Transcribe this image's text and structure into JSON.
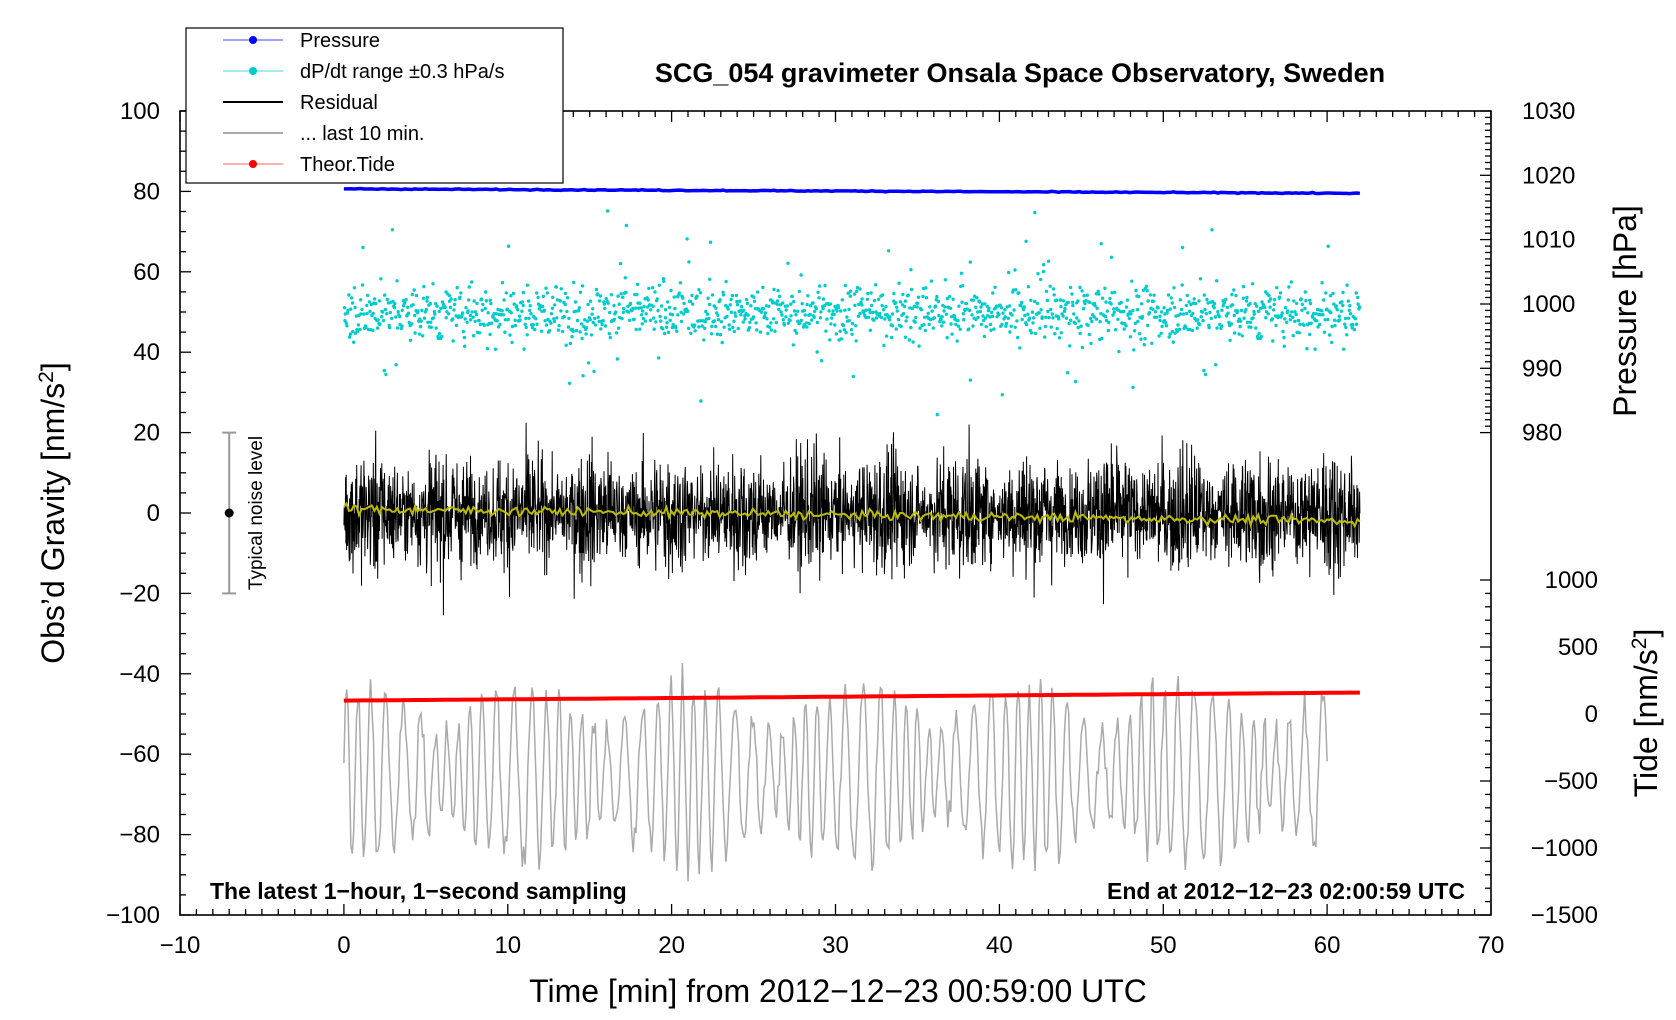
{
  "chart_data": {
    "type": "scatter",
    "title": "SCG_054 gravimeter Onsala Space Observatory, Sweden",
    "xlabel": "Time [min] from 2012−12−23 00:59:00 UTC",
    "ylabel_left": "Obs’d Gravity [nm/s",
    "ylabel_left_sup": "2",
    "ylabel_left_close": "]",
    "ylabel_right_pressure": "Pressure [hPa]",
    "ylabel_right_tide": "Tide [nm/s",
    "ylabel_right_tide_sup": "2",
    "ylabel_right_tide_close": "]",
    "xlim": [
      -10,
      70
    ],
    "ylim": [
      -100,
      100
    ],
    "x_ticks": [
      -10,
      0,
      10,
      20,
      30,
      40,
      50,
      60,
      70
    ],
    "x_tick_labels": [
      "−10",
      "0",
      "10",
      "20",
      "30",
      "40",
      "50",
      "60",
      "70"
    ],
    "y_ticks": [
      -100,
      -80,
      -60,
      -40,
      -20,
      0,
      20,
      40,
      60,
      80,
      100
    ],
    "y_tick_labels": [
      "−100",
      "−80",
      "−60",
      "−40",
      "−20",
      "0",
      "20",
      "40",
      "60",
      "80",
      "100"
    ],
    "pressure_axis": {
      "range": [
        980,
        1030
      ],
      "ticks": [
        980,
        990,
        1000,
        1010,
        1020,
        1030
      ],
      "tick_labels": [
        "980",
        "990",
        "1000",
        "1010",
        "1020",
        "1030"
      ],
      "gravity_at_min": 20,
      "gravity_at_max": 100
    },
    "tide_axis": {
      "range": [
        -1500,
        1000
      ],
      "ticks": [
        -1500,
        -1000,
        -500,
        0,
        500,
        1000
      ],
      "tick_labels": [
        "−1500",
        "−1000",
        "−500",
        "0",
        "500",
        "1000"
      ],
      "gravity_at_min": -100,
      "gravity_at_max": -16.67
    },
    "legend": [
      {
        "label": "Pressure",
        "color": "#0000ff",
        "marker": true
      },
      {
        "label": "dP/dt range ±0.3 hPa/s",
        "color": "#00cccc",
        "marker": true
      },
      {
        "label": "Residual",
        "color": "#000000",
        "marker": false
      },
      {
        "label": "... last 10 min.",
        "color": "#aaaaaa",
        "marker": false
      },
      {
        "label": "Theor.Tide",
        "color": "#ff0000",
        "marker": true
      }
    ],
    "series": [
      {
        "name": "Pressure",
        "unit": "hPa",
        "x_range": [
          0,
          62
        ],
        "start": 1017.9,
        "end": 1017.2,
        "color": "#0000ff"
      },
      {
        "name": "dP/dt range ±0.3 hPa/s",
        "center_gravity": 50,
        "spread": 10,
        "x_range": [
          0,
          62
        ],
        "color": "#00cccc"
      },
      {
        "name": "Residual",
        "center_gravity": 0,
        "amplitude": 25,
        "x_range": [
          0,
          62
        ],
        "color": "#000000"
      },
      {
        "name": "Residual trend",
        "x_range": [
          0,
          62
        ],
        "start": 1,
        "end": -2,
        "color": "#bbbb00"
      },
      {
        "name": "... last 10 min.",
        "center_gravity": -65,
        "amplitude": 22,
        "x_range": [
          0,
          60
        ],
        "color": "#aaaaaa"
      },
      {
        "name": "Theor.Tide",
        "unit": "nm/s2",
        "x_range": [
          0,
          62
        ],
        "start": 100,
        "end": 160,
        "color": "#ff0000"
      }
    ],
    "noise_bar": {
      "x": -7,
      "center": 0,
      "half_range": 20,
      "label": "Typical noise level",
      "color": "#999999"
    },
    "annotations": {
      "bottom_left": "The latest 1−hour, 1−second sampling",
      "bottom_right": "End at 2012−12−23 02:00:59 UTC"
    }
  }
}
